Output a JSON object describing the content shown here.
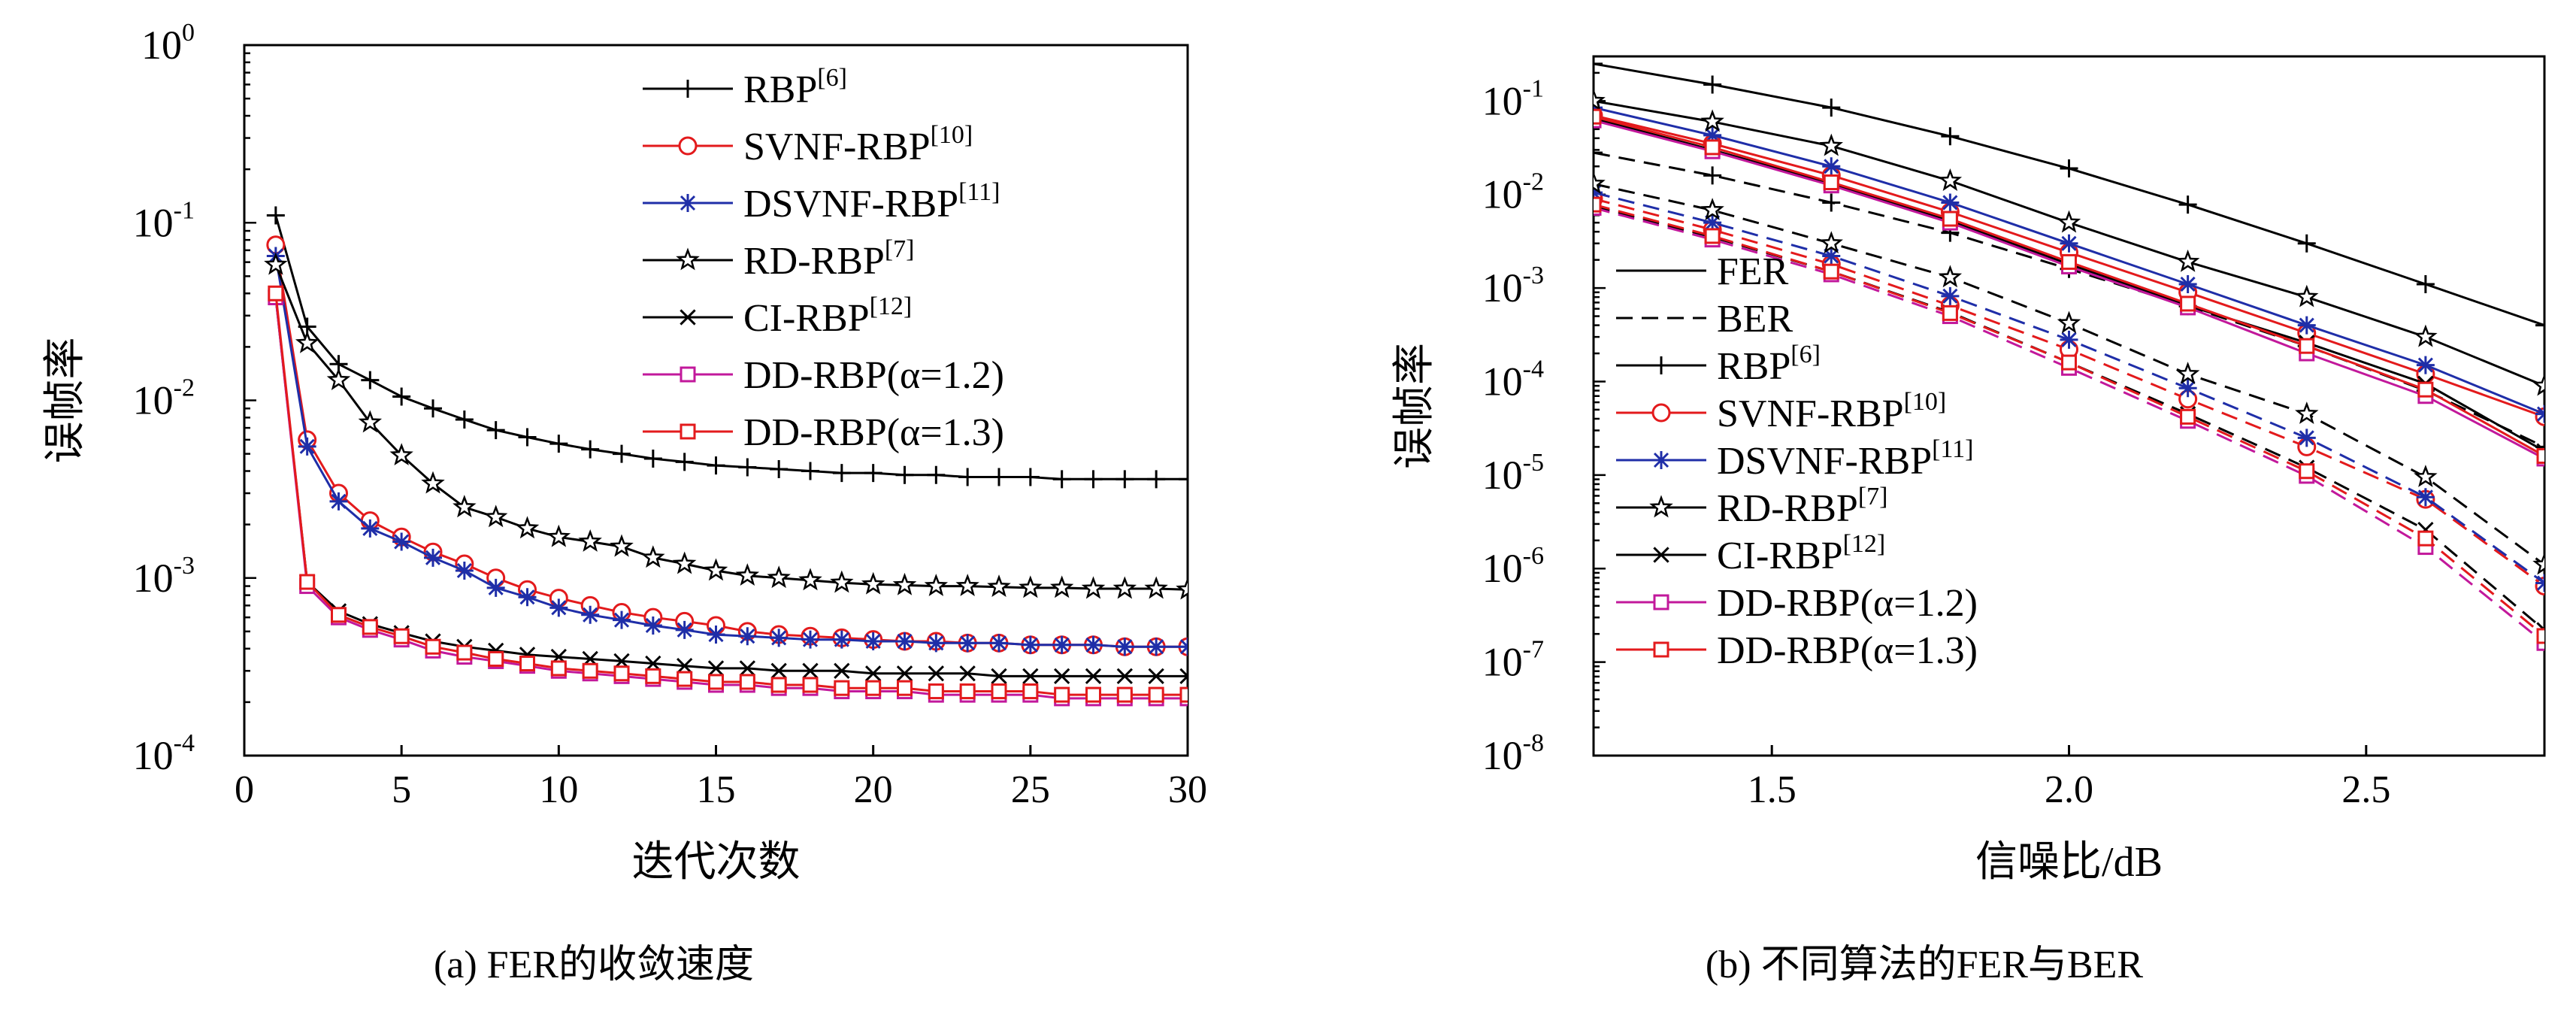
{
  "chart_data": [
    {
      "type": "line",
      "ylabel": "误帧率",
      "xlabel": "迭代次数",
      "caption": "(a) FER的收敛速度",
      "xlim": [
        0,
        30
      ],
      "ylim": [
        0.0001,
        1
      ],
      "yscale": "log",
      "xticks": [
        0,
        5,
        10,
        15,
        20,
        25,
        30
      ],
      "xticklabels": [
        "0",
        "5",
        "10",
        "15",
        "20",
        "25",
        "30"
      ],
      "yticks": [
        1,
        0.1,
        0.01,
        0.001,
        0.0001
      ],
      "yticklabels": [
        {
          "base": "10",
          "exp": "0"
        },
        {
          "base": "10",
          "exp": "-1"
        },
        {
          "base": "10",
          "exp": "-2"
        },
        {
          "base": "10",
          "exp": "-3"
        },
        {
          "base": "10",
          "exp": "-4"
        }
      ],
      "grid": false,
      "legend_position": "top-right",
      "x": [
        1,
        2,
        3,
        4,
        5,
        6,
        7,
        8,
        9,
        10,
        11,
        12,
        13,
        14,
        15,
        16,
        17,
        18,
        19,
        20,
        21,
        22,
        23,
        24,
        25,
        26,
        27,
        28,
        29,
        30
      ],
      "series": [
        {
          "name": "RBP",
          "sup": "[6]",
          "color": "#000000",
          "marker": "plus",
          "values": [
            0.11,
            0.026,
            0.016,
            0.013,
            0.0105,
            0.009,
            0.0078,
            0.0068,
            0.0062,
            0.0057,
            0.0053,
            0.005,
            0.0047,
            0.0045,
            0.0043,
            0.0042,
            0.0041,
            0.004,
            0.0039,
            0.0039,
            0.0038,
            0.0038,
            0.0037,
            0.0037,
            0.0037,
            0.0036,
            0.0036,
            0.0036,
            0.0036,
            0.0036
          ]
        },
        {
          "name": "SVNF-RBP",
          "sup": "[10]",
          "color": "#e31a1c",
          "marker": "circle",
          "values": [
            0.075,
            0.006,
            0.003,
            0.0021,
            0.0017,
            0.0014,
            0.0012,
            0.001,
            0.00086,
            0.00077,
            0.0007,
            0.00064,
            0.0006,
            0.00057,
            0.00054,
            0.0005,
            0.00048,
            0.00047,
            0.00046,
            0.00045,
            0.00044,
            0.00044,
            0.00043,
            0.00043,
            0.00042,
            0.00042,
            0.00042,
            0.00041,
            0.00041,
            0.00041
          ]
        },
        {
          "name": "DSVNF-RBP",
          "sup": "[11]",
          "color": "#1f2ea8",
          "marker": "asterisk",
          "values": [
            0.065,
            0.0055,
            0.0027,
            0.0019,
            0.0016,
            0.0013,
            0.0011,
            0.00088,
            0.00078,
            0.00068,
            0.00062,
            0.00058,
            0.00054,
            0.00051,
            0.00048,
            0.00047,
            0.00046,
            0.00045,
            0.00045,
            0.00044,
            0.00044,
            0.00043,
            0.00043,
            0.00043,
            0.00042,
            0.00042,
            0.00042,
            0.00041,
            0.00041,
            0.00041
          ]
        },
        {
          "name": "RD-RBP",
          "sup": "[7]",
          "color": "#000000",
          "marker": "star",
          "values": [
            0.058,
            0.021,
            0.013,
            0.0075,
            0.0049,
            0.0034,
            0.0025,
            0.0022,
            0.0019,
            0.0017,
            0.0016,
            0.0015,
            0.0013,
            0.0012,
            0.0011,
            0.00103,
            0.001,
            0.00097,
            0.00094,
            0.00092,
            0.00091,
            0.0009,
            0.0009,
            0.00089,
            0.00088,
            0.00088,
            0.00087,
            0.00087,
            0.00087,
            0.00086
          ]
        },
        {
          "name": "CI-RBP",
          "sup": "[12]",
          "color": "#000000",
          "marker": "x",
          "values": [
            0.038,
            0.00095,
            0.00065,
            0.00055,
            0.00049,
            0.00044,
            0.00041,
            0.00039,
            0.00037,
            0.00036,
            0.00035,
            0.00034,
            0.00033,
            0.00032,
            0.00031,
            0.00031,
            0.0003,
            0.0003,
            0.0003,
            0.00029,
            0.00029,
            0.00029,
            0.00029,
            0.00028,
            0.00028,
            0.00028,
            0.00028,
            0.00028,
            0.00028,
            0.00028
          ]
        },
        {
          "name": "DD-RBP(α=1.2)",
          "sup": "",
          "color": "#c2189b",
          "marker": "square",
          "values": [
            0.038,
            0.0009,
            0.0006,
            0.00051,
            0.00045,
            0.00039,
            0.00036,
            0.00034,
            0.00032,
            0.0003,
            0.00029,
            0.00028,
            0.00027,
            0.00026,
            0.00025,
            0.00025,
            0.00024,
            0.00024,
            0.00023,
            0.00023,
            0.00023,
            0.00022,
            0.00022,
            0.00022,
            0.00022,
            0.00021,
            0.00021,
            0.00021,
            0.00021,
            0.00021
          ]
        },
        {
          "name": "DD-RBP(α=1.3)",
          "sup": "",
          "color": "#e31a1c",
          "marker": "square",
          "values": [
            0.04,
            0.00095,
            0.00062,
            0.00053,
            0.00047,
            0.00041,
            0.00038,
            0.00035,
            0.00033,
            0.00031,
            0.0003,
            0.00029,
            0.00028,
            0.00027,
            0.00026,
            0.00026,
            0.00025,
            0.00025,
            0.00024,
            0.00024,
            0.00024,
            0.00023,
            0.00023,
            0.00023,
            0.00023,
            0.00022,
            0.00022,
            0.00022,
            0.00022,
            0.00022
          ]
        }
      ]
    },
    {
      "type": "line",
      "ylabel": "误帧率",
      "xlabel": "信噪比/dB",
      "caption": "(b) 不同算法的FER与BER",
      "xlim": [
        1.2,
        2.8
      ],
      "ylim": [
        1e-08,
        0.3
      ],
      "yscale": "log",
      "xticks": [
        1.5,
        2.0,
        2.5
      ],
      "xticklabels": [
        "1.5",
        "2.0",
        "2.5"
      ],
      "yticks": [
        0.1,
        0.01,
        0.001,
        0.0001,
        1e-05,
        1e-06,
        1e-07,
        1e-08
      ],
      "yticklabels": [
        {
          "base": "10",
          "exp": "-1"
        },
        {
          "base": "10",
          "exp": "-2"
        },
        {
          "base": "10",
          "exp": "-3"
        },
        {
          "base": "10",
          "exp": "-4"
        },
        {
          "base": "10",
          "exp": "-5"
        },
        {
          "base": "10",
          "exp": "-6"
        },
        {
          "base": "10",
          "exp": "-7"
        },
        {
          "base": "10",
          "exp": "-8"
        }
      ],
      "grid": false,
      "legend_position": "bottom-left",
      "line_styles": [
        {
          "name": "FER",
          "dash": "solid"
        },
        {
          "name": "BER",
          "dash": "dashed"
        }
      ],
      "x": [
        1.2,
        1.4,
        1.6,
        1.8,
        2.0,
        2.2,
        2.4,
        2.6,
        2.8
      ],
      "series": [
        {
          "name": "RBP",
          "sup": "[6]",
          "color": "#000000",
          "marker": "plus",
          "fer": [
            0.25,
            0.15,
            0.085,
            0.042,
            0.019,
            0.0078,
            0.003,
            0.0011,
            0.0004
          ],
          "ber": [
            0.028,
            0.016,
            0.0082,
            0.0039,
            0.0016,
            0.00064,
            0.00024,
            8e-05,
            2e-05
          ]
        },
        {
          "name": "SVNF-RBP",
          "sup": "[10]",
          "color": "#e31a1c",
          "marker": "circle",
          "fer": [
            0.07,
            0.035,
            0.016,
            0.0065,
            0.0024,
            0.0009,
            0.00033,
            0.00012,
            4.2e-05
          ],
          "ber": [
            0.009,
            0.0042,
            0.0018,
            0.00065,
            0.00022,
            6.5e-05,
            2e-05,
            5.5e-06,
            6.5e-07
          ]
        },
        {
          "name": "DSVNF-RBP",
          "sup": "[11]",
          "color": "#1f2ea8",
          "marker": "asterisk",
          "fer": [
            0.085,
            0.043,
            0.02,
            0.0082,
            0.003,
            0.0011,
            0.0004,
            0.00015,
            4.5e-05
          ],
          "ber": [
            0.0105,
            0.005,
            0.0022,
            0.00082,
            0.00028,
            8.5e-05,
            2.5e-05,
            5.8e-06,
            7e-07
          ]
        },
        {
          "name": "RD-RBP",
          "sup": "[7]",
          "color": "#000000",
          "marker": "star",
          "fer": [
            0.1,
            0.06,
            0.033,
            0.014,
            0.005,
            0.0019,
            0.0008,
            0.0003,
            9e-05
          ],
          "ber": [
            0.013,
            0.0068,
            0.003,
            0.0013,
            0.00042,
            0.00012,
            4.5e-05,
            9.5e-06,
            1.1e-06
          ]
        },
        {
          "name": "CI-RBP",
          "sup": "[12]",
          "color": "#000000",
          "marker": "x",
          "fer": [
            0.065,
            0.03,
            0.013,
            0.0052,
            0.0018,
            0.00065,
            0.00026,
            9.5e-05,
            1.8e-05
          ],
          "ber": [
            0.0075,
            0.0035,
            0.0015,
            0.00055,
            0.00016,
            4.5e-05,
            1.2e-05,
            2.6e-06,
            2.2e-07
          ]
        },
        {
          "name": "DD-RBP(α=1.2)",
          "sup": "",
          "color": "#c2189b",
          "marker": "square",
          "fer": [
            0.062,
            0.029,
            0.0125,
            0.005,
            0.0017,
            0.00062,
            0.0002,
            7e-05,
            1.5e-05
          ],
          "ber": [
            0.0072,
            0.0033,
            0.0014,
            0.0005,
            0.00014,
            3.8e-05,
            9.8e-06,
            1.7e-06,
            1.6e-07
          ]
        },
        {
          "name": "DD-RBP(α=1.3)",
          "sup": "",
          "color": "#e31a1c",
          "marker": "square",
          "fer": [
            0.068,
            0.032,
            0.0135,
            0.0055,
            0.0019,
            0.00068,
            0.00024,
            8.2e-05,
            1.6e-05
          ],
          "ber": [
            0.0078,
            0.0036,
            0.0015,
            0.00054,
            0.00016,
            4.2e-05,
            1.1e-05,
            2.1e-06,
            1.9e-07
          ]
        }
      ]
    }
  ]
}
